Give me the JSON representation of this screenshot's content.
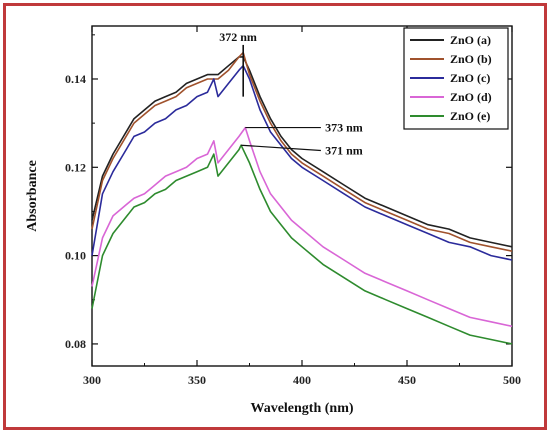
{
  "chart_data": {
    "type": "line",
    "xlabel": "Wavelength (nm)",
    "ylabel": "Absorbance",
    "xlim": [
      300,
      500
    ],
    "ylim": [
      0.075,
      0.152
    ],
    "xticks": [
      300,
      350,
      400,
      450,
      500
    ],
    "yticks": [
      0.08,
      0.1,
      0.12,
      0.14
    ],
    "ytick_labels": [
      "0.08",
      "0.10",
      "0.12",
      "0.14"
    ],
    "legend": {
      "position": "top-right"
    },
    "grid": false,
    "series": [
      {
        "name": "ZnO (a)",
        "color": "#222222",
        "x": [
          300,
          305,
          310,
          315,
          320,
          325,
          330,
          335,
          340,
          345,
          350,
          355,
          360,
          365,
          370,
          372,
          375,
          380,
          385,
          390,
          395,
          400,
          410,
          420,
          430,
          440,
          450,
          460,
          470,
          480,
          490,
          500
        ],
        "y": [
          0.108,
          0.118,
          0.123,
          0.127,
          0.131,
          0.133,
          0.135,
          0.136,
          0.137,
          0.139,
          0.14,
          0.141,
          0.141,
          0.143,
          0.145,
          0.145,
          0.142,
          0.136,
          0.131,
          0.127,
          0.124,
          0.122,
          0.119,
          0.116,
          0.113,
          0.111,
          0.109,
          0.107,
          0.106,
          0.104,
          0.103,
          0.102
        ]
      },
      {
        "name": "ZnO (b)",
        "color": "#a0522d",
        "x": [
          300,
          305,
          310,
          315,
          320,
          325,
          330,
          335,
          340,
          345,
          350,
          355,
          360,
          365,
          370,
          372,
          375,
          380,
          385,
          390,
          395,
          400,
          410,
          420,
          430,
          440,
          450,
          460,
          470,
          480,
          490,
          500
        ],
        "y": [
          0.106,
          0.117,
          0.122,
          0.126,
          0.13,
          0.132,
          0.134,
          0.135,
          0.136,
          0.138,
          0.139,
          0.14,
          0.14,
          0.142,
          0.145,
          0.146,
          0.141,
          0.135,
          0.13,
          0.126,
          0.123,
          0.121,
          0.118,
          0.115,
          0.112,
          0.11,
          0.108,
          0.106,
          0.105,
          0.103,
          0.102,
          0.101
        ]
      },
      {
        "name": "ZnO (c)",
        "color": "#2b2b9b",
        "x": [
          300,
          305,
          310,
          315,
          320,
          325,
          330,
          335,
          340,
          345,
          350,
          355,
          358,
          360,
          365,
          370,
          372,
          375,
          380,
          385,
          390,
          395,
          400,
          410,
          420,
          430,
          440,
          450,
          460,
          470,
          480,
          490,
          500
        ],
        "y": [
          0.1,
          0.114,
          0.119,
          0.123,
          0.127,
          0.128,
          0.13,
          0.131,
          0.133,
          0.134,
          0.136,
          0.137,
          0.14,
          0.136,
          0.139,
          0.142,
          0.143,
          0.14,
          0.133,
          0.128,
          0.125,
          0.122,
          0.12,
          0.117,
          0.114,
          0.111,
          0.109,
          0.107,
          0.105,
          0.103,
          0.102,
          0.1,
          0.099
        ]
      },
      {
        "name": "ZnO (d)",
        "color": "#d966d6",
        "x": [
          300,
          305,
          310,
          315,
          320,
          325,
          330,
          335,
          340,
          345,
          350,
          355,
          358,
          360,
          365,
          370,
          373,
          375,
          380,
          385,
          390,
          395,
          400,
          410,
          420,
          430,
          440,
          450,
          460,
          470,
          480,
          490,
          500
        ],
        "y": [
          0.093,
          0.104,
          0.109,
          0.111,
          0.113,
          0.114,
          0.116,
          0.118,
          0.119,
          0.12,
          0.122,
          0.123,
          0.126,
          0.121,
          0.124,
          0.127,
          0.129,
          0.126,
          0.119,
          0.114,
          0.111,
          0.108,
          0.106,
          0.102,
          0.099,
          0.096,
          0.094,
          0.092,
          0.09,
          0.088,
          0.086,
          0.085,
          0.084
        ]
      },
      {
        "name": "ZnO (e)",
        "color": "#2e8b2e",
        "x": [
          300,
          305,
          310,
          315,
          320,
          325,
          330,
          335,
          340,
          345,
          350,
          355,
          358,
          360,
          365,
          370,
          371,
          375,
          380,
          385,
          390,
          395,
          400,
          410,
          420,
          430,
          440,
          450,
          460,
          470,
          480,
          490,
          500
        ],
        "y": [
          0.088,
          0.1,
          0.105,
          0.108,
          0.111,
          0.112,
          0.114,
          0.115,
          0.117,
          0.118,
          0.119,
          0.12,
          0.123,
          0.118,
          0.121,
          0.124,
          0.125,
          0.121,
          0.115,
          0.11,
          0.107,
          0.104,
          0.102,
          0.098,
          0.095,
          0.092,
          0.09,
          0.088,
          0.086,
          0.084,
          0.082,
          0.081,
          0.08
        ]
      }
    ],
    "annotations": [
      {
        "text": "372 nm",
        "x": 372,
        "y": 0.145
      },
      {
        "text": "373 nm",
        "x": 373,
        "y": 0.129
      },
      {
        "text": "371 nm",
        "x": 371,
        "y": 0.125
      }
    ]
  }
}
